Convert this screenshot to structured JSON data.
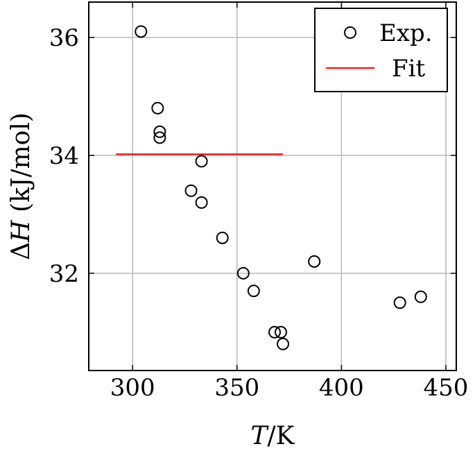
{
  "chart_data": {
    "type": "scatter",
    "title": "",
    "xlabel": {
      "var": "T",
      "unit": "/K"
    },
    "ylabel": {
      "var": "ΔH",
      "unit": " (kJ/mol)"
    },
    "xlim": [
      279,
      455
    ],
    "ylim": [
      30.35,
      36.6
    ],
    "xticks": [
      300,
      350,
      400,
      450
    ],
    "yticks": [
      32,
      34,
      36
    ],
    "grid": true,
    "legend_position": "top-right",
    "series": [
      {
        "name": "Exp.",
        "kind": "scatter",
        "marker": "open-circle",
        "color": "#000000",
        "points": [
          [
            304,
            36.1
          ],
          [
            312,
            34.8
          ],
          [
            313,
            34.4
          ],
          [
            313,
            34.3
          ],
          [
            333,
            33.9
          ],
          [
            328,
            33.4
          ],
          [
            333,
            33.2
          ],
          [
            343,
            32.6
          ],
          [
            353,
            32.0
          ],
          [
            358,
            31.7
          ],
          [
            368,
            31.0
          ],
          [
            371,
            31.0
          ],
          [
            372,
            30.8
          ],
          [
            387,
            32.2
          ],
          [
            428,
            31.5
          ],
          [
            438,
            31.6
          ]
        ]
      },
      {
        "name": "Fit",
        "kind": "line",
        "color": "#ff0000",
        "points": [
          [
            292,
            34.02
          ],
          [
            372,
            34.02
          ]
        ]
      }
    ]
  }
}
